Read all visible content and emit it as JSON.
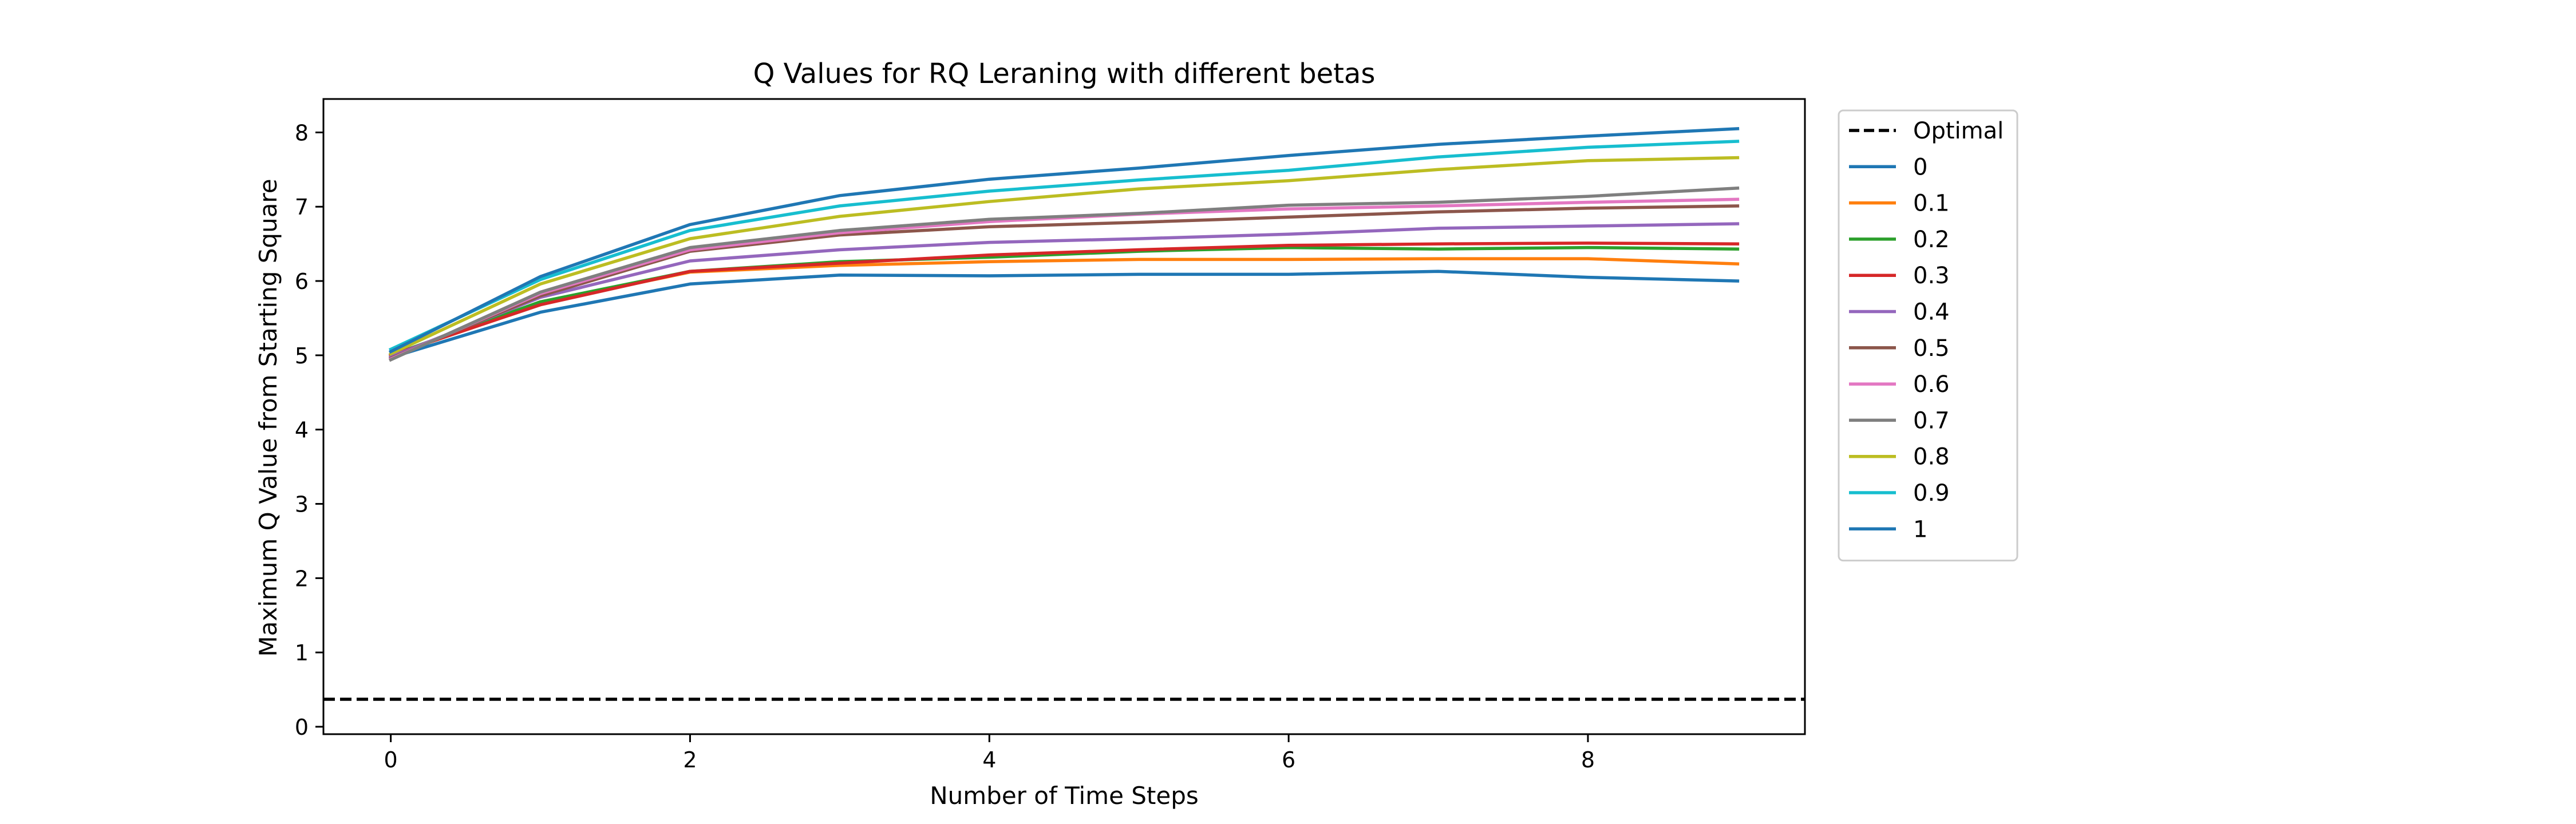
{
  "chart_data": {
    "type": "line",
    "title": "Q Values for RQ Leraning with different betas",
    "xlabel": "Number of Time Steps",
    "ylabel": "Maximum Q Value from Starting Square",
    "xlim": [
      -0.45,
      9.45
    ],
    "ylim": [
      -0.1,
      8.45
    ],
    "xticks": [
      0,
      2,
      4,
      6,
      8
    ],
    "yticks": [
      0,
      1,
      2,
      3,
      4,
      5,
      6,
      7,
      8
    ],
    "grid": false,
    "legend_position": "outside-right",
    "x": [
      0,
      1,
      2,
      3,
      4,
      5,
      6,
      7,
      8,
      9
    ],
    "optimal": {
      "name": "Optimal",
      "value": 0.37,
      "color": "#000000",
      "style": "dashed"
    },
    "series": [
      {
        "name": "0",
        "color": "#1f77b4",
        "values": [
          4.97,
          5.58,
          5.96,
          6.08,
          6.07,
          6.09,
          6.09,
          6.13,
          6.05,
          6.0
        ]
      },
      {
        "name": "0.1",
        "color": "#ff7f0e",
        "values": [
          4.99,
          5.7,
          6.12,
          6.21,
          6.26,
          6.29,
          6.29,
          6.3,
          6.3,
          6.23
        ]
      },
      {
        "name": "0.2",
        "color": "#2ca02c",
        "values": [
          5.0,
          5.72,
          6.13,
          6.26,
          6.32,
          6.4,
          6.45,
          6.43,
          6.45,
          6.43
        ]
      },
      {
        "name": "0.3",
        "color": "#d62728",
        "values": [
          5.0,
          5.68,
          6.13,
          6.24,
          6.35,
          6.42,
          6.48,
          6.5,
          6.51,
          6.5
        ]
      },
      {
        "name": "0.4",
        "color": "#9467bd",
        "values": [
          4.98,
          5.78,
          6.27,
          6.42,
          6.52,
          6.57,
          6.63,
          6.71,
          6.74,
          6.77
        ]
      },
      {
        "name": "0.5",
        "color": "#8c564b",
        "values": [
          4.96,
          5.8,
          6.4,
          6.62,
          6.73,
          6.79,
          6.86,
          6.93,
          6.98,
          7.01
        ]
      },
      {
        "name": "0.6",
        "color": "#e377c2",
        "values": [
          4.95,
          5.83,
          6.42,
          6.65,
          6.8,
          6.9,
          6.97,
          7.01,
          7.06,
          7.1
        ]
      },
      {
        "name": "0.7",
        "color": "#7f7f7f",
        "values": [
          4.94,
          5.85,
          6.45,
          6.68,
          6.83,
          6.91,
          7.02,
          7.06,
          7.14,
          7.25
        ]
      },
      {
        "name": "0.8",
        "color": "#bcbd22",
        "values": [
          5.02,
          5.96,
          6.57,
          6.87,
          7.07,
          7.24,
          7.35,
          7.5,
          7.62,
          7.66
        ]
      },
      {
        "name": "0.9",
        "color": "#17becf",
        "values": [
          5.08,
          6.02,
          6.68,
          7.01,
          7.21,
          7.36,
          7.49,
          7.67,
          7.8,
          7.88
        ]
      },
      {
        "name": "1",
        "color": "#1f77b4",
        "values": [
          5.05,
          6.06,
          6.76,
          7.15,
          7.37,
          7.52,
          7.69,
          7.84,
          7.95,
          8.05
        ]
      }
    ]
  }
}
